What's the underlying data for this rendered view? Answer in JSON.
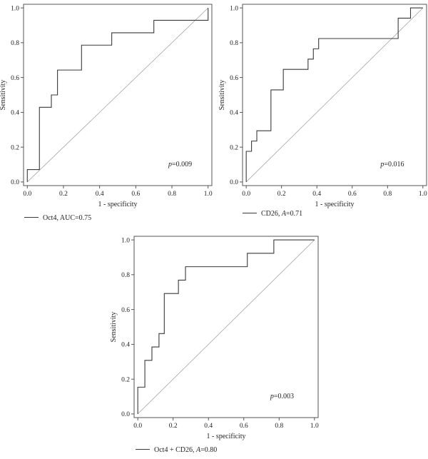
{
  "chart_data": [
    {
      "type": "line",
      "xlabel": "1 - specificity",
      "ylabel": "Sensitivity",
      "xlim": [
        0,
        1
      ],
      "ylim": [
        0,
        1
      ],
      "xticks": [
        "0.0",
        "0.2",
        "0.4",
        "0.6",
        "0.8",
        "1.0"
      ],
      "yticks": [
        "0.0",
        "0.2",
        "0.4",
        "0.6",
        "0.8",
        "1.0"
      ],
      "grid": false,
      "reference_line": [
        [
          0,
          0
        ],
        [
          1,
          1
        ]
      ],
      "annotation": {
        "italic": "p",
        "rest": "=0.009",
        "x": 0.78,
        "y": 0.09
      },
      "legend": {
        "text": "Oct4, AUC=0.75",
        "pre": "Oct4, AUC=0.75",
        "italic": "",
        "post": "",
        "position": "bottom-left"
      },
      "series": [
        {
          "x": [
            0,
            0,
            0.067,
            0.067,
            0.133,
            0.133,
            0.167,
            0.167,
            0.3,
            0.3,
            0.467,
            0.467,
            0.7,
            0.7,
            1.0,
            1.0
          ],
          "y": [
            0,
            0.071,
            0.071,
            0.429,
            0.429,
            0.5,
            0.5,
            0.643,
            0.643,
            0.786,
            0.786,
            0.857,
            0.857,
            0.929,
            0.929,
            1.0
          ]
        }
      ]
    },
    {
      "type": "line",
      "xlabel": "1 - specificity",
      "ylabel": "Sensitivity",
      "xlim": [
        0,
        1
      ],
      "ylim": [
        0,
        1
      ],
      "xticks": [
        "0.0",
        "0.2",
        "0.4",
        "0.6",
        "0.8",
        "1.0"
      ],
      "yticks": [
        "0.0",
        "0.2",
        "0.4",
        "0.6",
        "0.8",
        "1.0"
      ],
      "grid": false,
      "reference_line": [
        [
          0,
          0
        ],
        [
          1,
          1
        ]
      ],
      "annotation": {
        "italic": "p",
        "rest": "=0.016",
        "x": 0.76,
        "y": 0.09
      },
      "legend": {
        "text": "CD26, A=0.71",
        "pre": "CD26, ",
        "italic": "A",
        "post": "=0.71",
        "position": "bottom-left"
      },
      "series": [
        {
          "x": [
            0,
            0,
            0.03,
            0.03,
            0.06,
            0.06,
            0.08,
            0.08,
            0.14,
            0.14,
            0.21,
            0.21,
            0.35,
            0.35,
            0.38,
            0.38,
            0.41,
            0.41,
            0.86,
            0.86,
            0.93,
            0.93,
            1.0
          ],
          "y": [
            0,
            0.176,
            0.176,
            0.235,
            0.235,
            0.294,
            0.294,
            0.294,
            0.294,
            0.529,
            0.529,
            0.647,
            0.647,
            0.706,
            0.706,
            0.765,
            0.765,
            0.824,
            0.824,
            0.941,
            0.941,
            1.0,
            1.0
          ]
        }
      ]
    },
    {
      "type": "line",
      "xlabel": "1 - specificity",
      "ylabel": "Sensitivity",
      "xlim": [
        0,
        1
      ],
      "ylim": [
        0,
        1
      ],
      "xticks": [
        "0.0",
        "0.2",
        "0.4",
        "0.6",
        "0.8",
        "1.0"
      ],
      "yticks": [
        "0.0",
        "0.2",
        "0.4",
        "0.6",
        "0.8",
        "1.0"
      ],
      "grid": false,
      "reference_line": [
        [
          0,
          0
        ],
        [
          1,
          1
        ]
      ],
      "annotation": {
        "italic": "p",
        "rest": "=0.003",
        "x": 0.75,
        "y": 0.09
      },
      "legend": {
        "text": "Oct4 + CD26, A=0.80",
        "pre": "Oct4 + CD26, ",
        "italic": "A",
        "post": "=0.80",
        "position": "bottom-left"
      },
      "series": [
        {
          "x": [
            0,
            0,
            0.04,
            0.04,
            0.08,
            0.08,
            0.12,
            0.12,
            0.15,
            0.15,
            0.23,
            0.23,
            0.27,
            0.27,
            0.62,
            0.62,
            0.77,
            0.77,
            1.0
          ],
          "y": [
            0,
            0.154,
            0.154,
            0.308,
            0.308,
            0.385,
            0.385,
            0.462,
            0.462,
            0.692,
            0.692,
            0.769,
            0.769,
            0.846,
            0.846,
            0.923,
            0.923,
            1.0,
            1.0
          ]
        }
      ]
    }
  ]
}
